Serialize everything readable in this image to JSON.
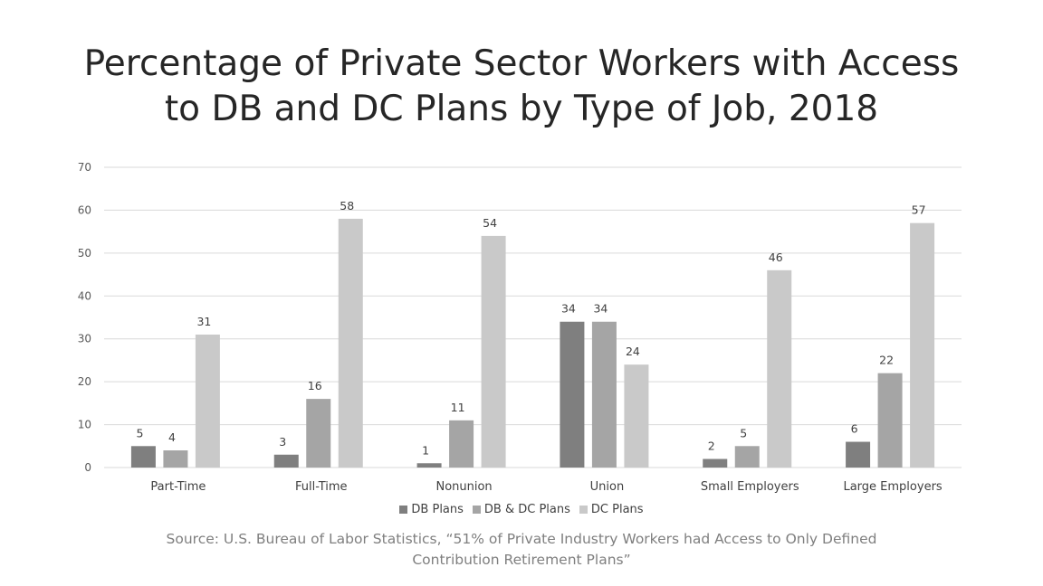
{
  "chart_data": {
    "type": "bar",
    "title": "Percentage of Private Sector Workers with Access to DB and DC Plans by Type of Job, 2018",
    "title_lines": [
      "Percentage of Private Sector Workers with Access",
      "to DB and DC Plans by Type of Job, 2018"
    ],
    "categories": [
      "Part-Time",
      "Full-Time",
      "Nonunion",
      "Union",
      "Small Employers",
      "Large Employers"
    ],
    "series": [
      {
        "name": "DB Plans",
        "values": [
          5,
          3,
          1,
          34,
          2,
          6
        ],
        "color": "#7f7f7f"
      },
      {
        "name": "DB & DC Plans",
        "values": [
          4,
          16,
          11,
          34,
          5,
          22
        ],
        "color": "#a5a5a5"
      },
      {
        "name": "DC Plans",
        "values": [
          31,
          58,
          54,
          24,
          46,
          57
        ],
        "color": "#c9c9c9"
      }
    ],
    "ylim": [
      0,
      70
    ],
    "yticks": [
      0,
      10,
      20,
      30,
      40,
      50,
      60,
      70
    ],
    "xlabel": "",
    "ylabel": "",
    "grid": true,
    "legend_position": "bottom"
  },
  "source_lines": [
    "Source: U.S. Bureau of Labor Statistics, “51% of Private Industry Workers had Access to Only Defined",
    "Contribution Retirement Plans”"
  ]
}
